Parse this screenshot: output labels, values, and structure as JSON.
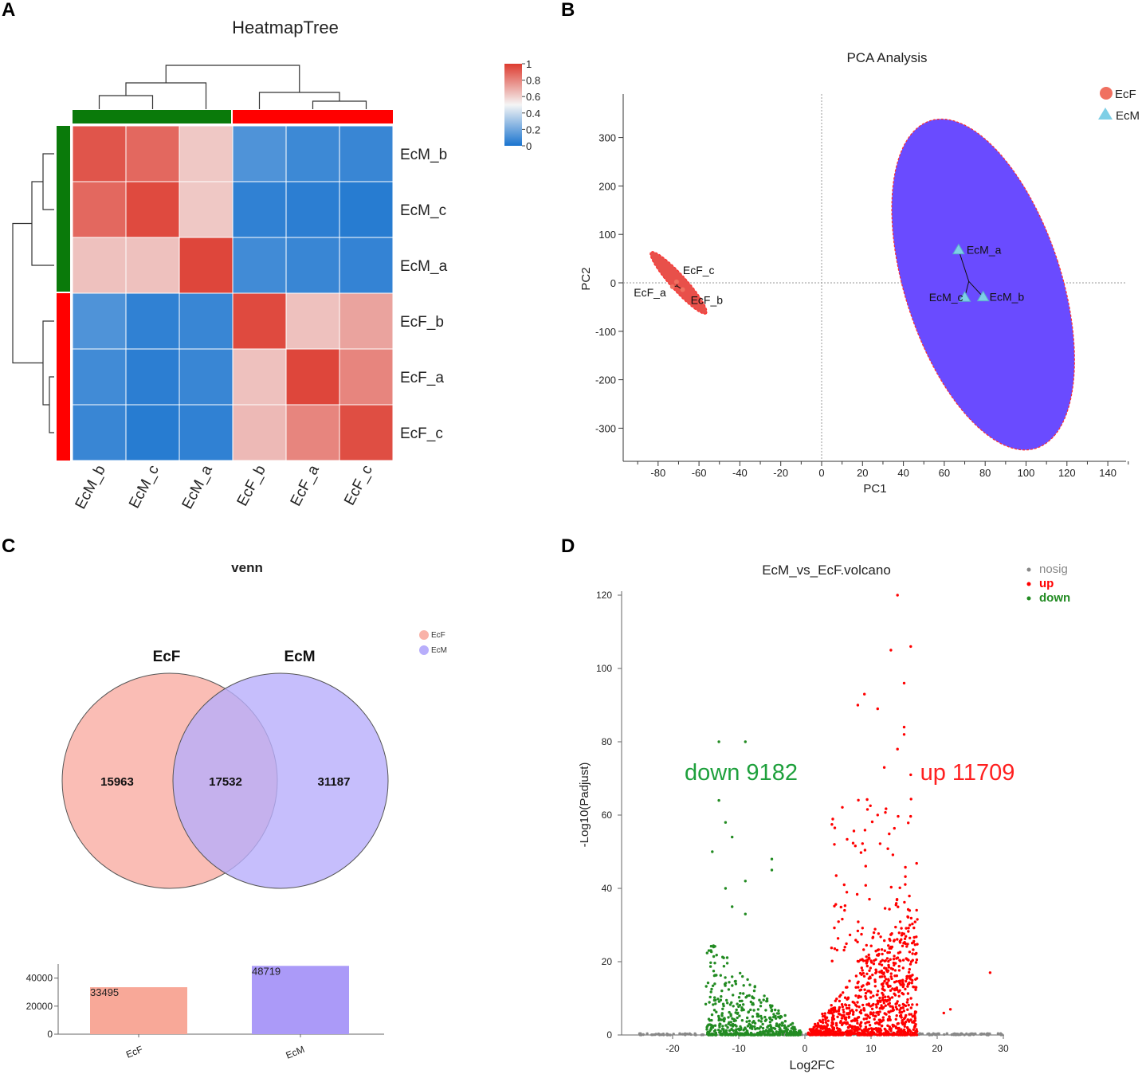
{
  "figure": {
    "panel_labels": [
      "A",
      "B",
      "C",
      "D"
    ]
  },
  "chart_data": [
    {
      "panel": "A",
      "type": "heatmap",
      "title": "HeatmapTree",
      "rows": [
        "EcM_b",
        "EcM_c",
        "EcM_a",
        "EcF_b",
        "EcF_a",
        "EcF_c"
      ],
      "columns": [
        "EcM_b",
        "EcM_c",
        "EcM_a",
        "EcF_b",
        "EcF_a",
        "EcF_c"
      ],
      "values": [
        [
          0.93,
          0.88,
          0.62,
          0.12,
          0.08,
          0.07
        ],
        [
          0.88,
          0.96,
          0.62,
          0.05,
          0.04,
          0.03
        ],
        [
          0.64,
          0.64,
          0.97,
          0.09,
          0.07,
          0.06
        ],
        [
          0.12,
          0.05,
          0.07,
          0.96,
          0.64,
          0.72
        ],
        [
          0.09,
          0.04,
          0.07,
          0.64,
          0.97,
          0.8
        ],
        [
          0.07,
          0.03,
          0.05,
          0.66,
          0.8,
          0.95
        ]
      ],
      "colorbar": {
        "ticks": [
          "1",
          "0.8",
          "0.6",
          "0.4",
          "0.2",
          "0"
        ],
        "range": [
          0,
          1
        ],
        "low_color": "#1a74cf",
        "mid_color": "#f5f5f5",
        "high_color": "#dd3b2f"
      },
      "groups": {
        "col_groups": [
          "green",
          "green",
          "green",
          "red",
          "red",
          "red"
        ],
        "row_groups": [
          "green",
          "green",
          "green",
          "red",
          "red",
          "red"
        ],
        "green": "#0a7a0a",
        "red": "#ff0000"
      }
    },
    {
      "panel": "B",
      "type": "scatter",
      "title": "PCA Analysis",
      "xlabel": "PC1",
      "ylabel": "PC2",
      "xlim": [
        -95,
        150
      ],
      "ylim": [
        -370,
        390
      ],
      "xticks": [
        -80,
        -60,
        -40,
        -20,
        0,
        20,
        40,
        60,
        80,
        100,
        120,
        140
      ],
      "yticks": [
        300,
        200,
        100,
        0,
        -100,
        -200,
        -300
      ],
      "series": [
        {
          "name": "EcF",
          "marker": "circle",
          "color": "#f07060",
          "points": [
            {
              "label": "EcF_c",
              "x": -71,
              "y": 2
            },
            {
              "label": "EcF_a",
              "x": -73,
              "y": -8
            },
            {
              "label": "EcF_b",
              "x": -68,
              "y": -14
            }
          ],
          "ellipse": {
            "cx": -70,
            "cy": 0,
            "rx": 5,
            "ry": 80,
            "angle_deg": -60,
            "fill": "#e8504a"
          }
        },
        {
          "name": "EcM",
          "marker": "triangle",
          "color": "#7ecfe6",
          "points": [
            {
              "label": "EcM_a",
              "x": 67,
              "y": 68
            },
            {
              "label": "EcM_c",
              "x": 70,
              "y": -30
            },
            {
              "label": "EcM_b",
              "x": 79,
              "y": -29
            }
          ],
          "ellipse": {
            "cx": 72,
            "cy": -10,
            "rx": 70,
            "ry": 350,
            "angle_deg": 0,
            "fill": "#6a4bff"
          }
        }
      ],
      "legend": [
        "EcF",
        "EcM"
      ],
      "legend_position": "top-right"
    },
    {
      "panel": "C",
      "type": "venn",
      "title": "venn",
      "sets": [
        {
          "name": "EcF",
          "only": "15963",
          "color": "#f9b2a8"
        },
        {
          "name": "EcM",
          "only": "31187",
          "color": "#b8aefb"
        }
      ],
      "intersection": "17532",
      "legend": [
        "EcF",
        "EcM"
      ],
      "bar": {
        "type": "bar",
        "categories": [
          "EcF",
          "EcM"
        ],
        "values": [
          33495,
          48719
        ],
        "value_labels": [
          "33495",
          "48719"
        ],
        "yticks": [
          "40000",
          "20000",
          "0"
        ],
        "ylim": [
          0,
          50000
        ],
        "colors": [
          "#f8a898",
          "#ab9af8"
        ]
      }
    },
    {
      "panel": "D",
      "type": "scatter",
      "title": "EcM_vs_EcF.volcano",
      "xlabel": "Log2FC",
      "ylabel": "-Log10(Padjust)",
      "xlim": [
        -28,
        31
      ],
      "ylim": [
        0,
        122
      ],
      "xticks": [
        -20,
        -10,
        0,
        10,
        20,
        30
      ],
      "yticks": [
        0,
        20,
        40,
        60,
        80,
        100,
        120
      ],
      "legend": [
        {
          "label": "nosig",
          "color": "#888888"
        },
        {
          "label": "up",
          "color": "#ff0000"
        },
        {
          "label": "down",
          "color": "#228b22"
        }
      ],
      "annotations": {
        "down": "down 9182",
        "up": "up 11709"
      },
      "highlight_points": {
        "up": [
          [
            14,
            120
          ],
          [
            16,
            106
          ],
          [
            13,
            105
          ],
          [
            15,
            96
          ],
          [
            9,
            93
          ],
          [
            8,
            90
          ],
          [
            11,
            89
          ],
          [
            15,
            84
          ],
          [
            15,
            82
          ],
          [
            14,
            78
          ],
          [
            12,
            73
          ],
          [
            16,
            71
          ],
          [
            28,
            17
          ],
          [
            22,
            7
          ],
          [
            21,
            6
          ]
        ],
        "down": [
          [
            -13,
            80
          ],
          [
            -9,
            80
          ],
          [
            -13,
            64
          ],
          [
            -12,
            58
          ],
          [
            -11,
            54
          ],
          [
            -14,
            50
          ],
          [
            -5,
            48
          ],
          [
            -5,
            45
          ],
          [
            -9,
            42
          ],
          [
            -12,
            40
          ],
          [
            -11,
            35
          ],
          [
            -9,
            33
          ]
        ]
      }
    }
  ]
}
